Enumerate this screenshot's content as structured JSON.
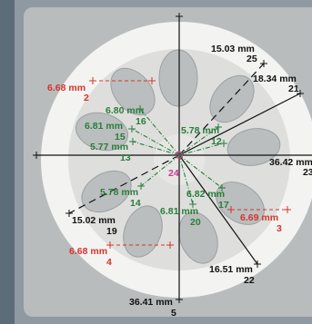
{
  "colors": {
    "black": "#111111",
    "red": "#d4342a",
    "green": "#2a7d3a",
    "magenta": "#d0368e"
  },
  "center_label": "24",
  "measurements": [
    {
      "id": "m25",
      "value": "15.03 mm",
      "index": "25",
      "color": "black"
    },
    {
      "id": "m21",
      "value": "18.34 mm",
      "index": "21",
      "color": "black"
    },
    {
      "id": "m23",
      "value": "36.42 mm",
      "index": "23",
      "color": "black"
    },
    {
      "id": "m22",
      "value": "16.51 mm",
      "index": "22",
      "color": "black"
    },
    {
      "id": "m5",
      "value": "36.41 mm",
      "index": "5",
      "color": "black"
    },
    {
      "id": "m19",
      "value": "15.02 mm",
      "index": "19",
      "color": "black"
    },
    {
      "id": "m2",
      "value": "6.68 mm",
      "index": "2",
      "color": "red"
    },
    {
      "id": "m3",
      "value": "6.69 mm",
      "index": "3",
      "color": "red"
    },
    {
      "id": "m4",
      "value": "6.68 mm",
      "index": "4",
      "color": "red"
    },
    {
      "id": "m16",
      "value": "6.80 mm",
      "index": "16",
      "color": "green"
    },
    {
      "id": "m15",
      "value": "6.81 mm",
      "index": "15",
      "color": "green"
    },
    {
      "id": "m13",
      "value": "5.77 mm",
      "index": "13",
      "color": "green"
    },
    {
      "id": "m12",
      "value": "5.78 mm",
      "index": "12",
      "color": "green"
    },
    {
      "id": "m14",
      "value": "5.78 mm",
      "index": "14",
      "color": "green"
    },
    {
      "id": "m17",
      "value": "6.82 mm",
      "index": "17",
      "color": "green"
    },
    {
      "id": "m20",
      "value": "6.81 mm",
      "index": "20",
      "color": "green"
    }
  ]
}
